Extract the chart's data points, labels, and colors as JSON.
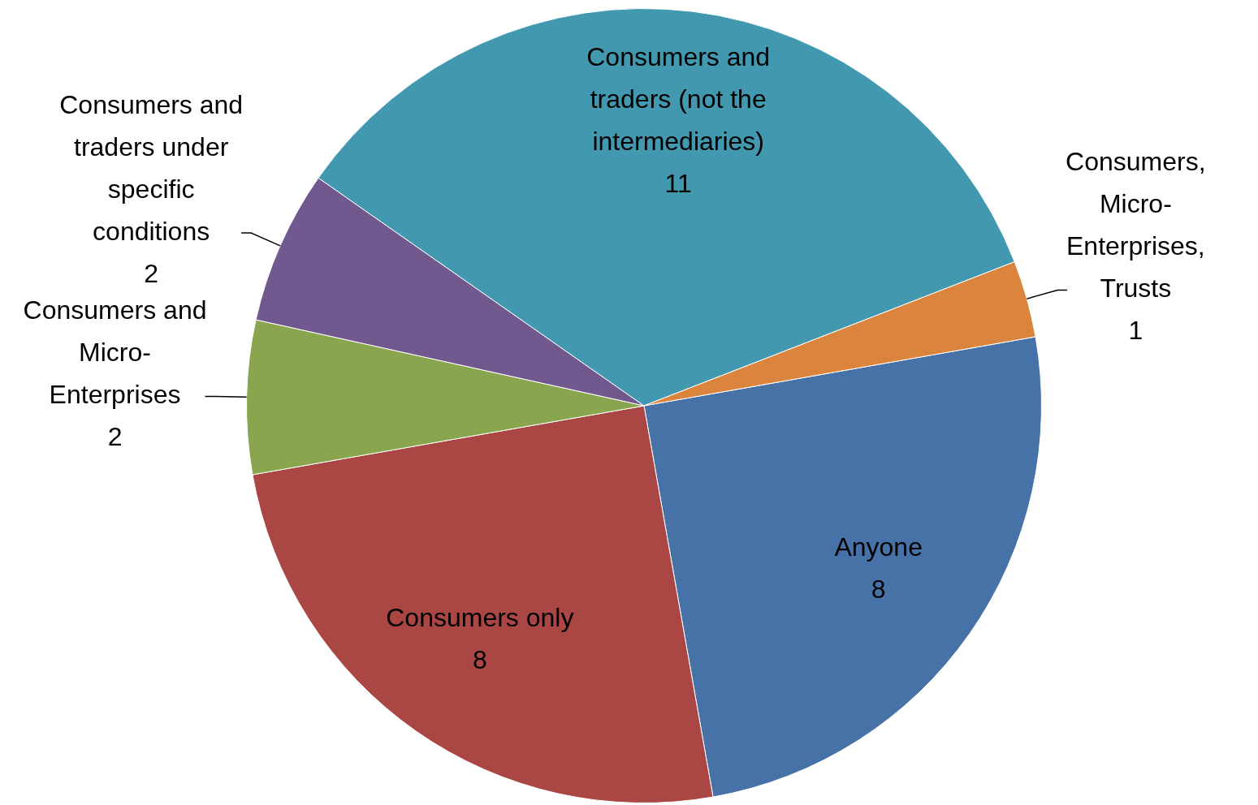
{
  "chart_data": {
    "type": "pie",
    "categories": [
      "Anyone",
      "Consumers only",
      "Consumers and Micro-Enterprises",
      "Consumers and traders under specific conditions",
      "Consumers and traders (not the intermediaries)",
      "Consumers, Micro-Enterprises, Trusts"
    ],
    "values": [
      8,
      8,
      2,
      2,
      11,
      1
    ],
    "colors": [
      "#4672a8",
      "#aa4644",
      "#89a54e",
      "#71588f",
      "#4198af",
      "#db843d"
    ],
    "data_labels": true,
    "legend": false
  }
}
